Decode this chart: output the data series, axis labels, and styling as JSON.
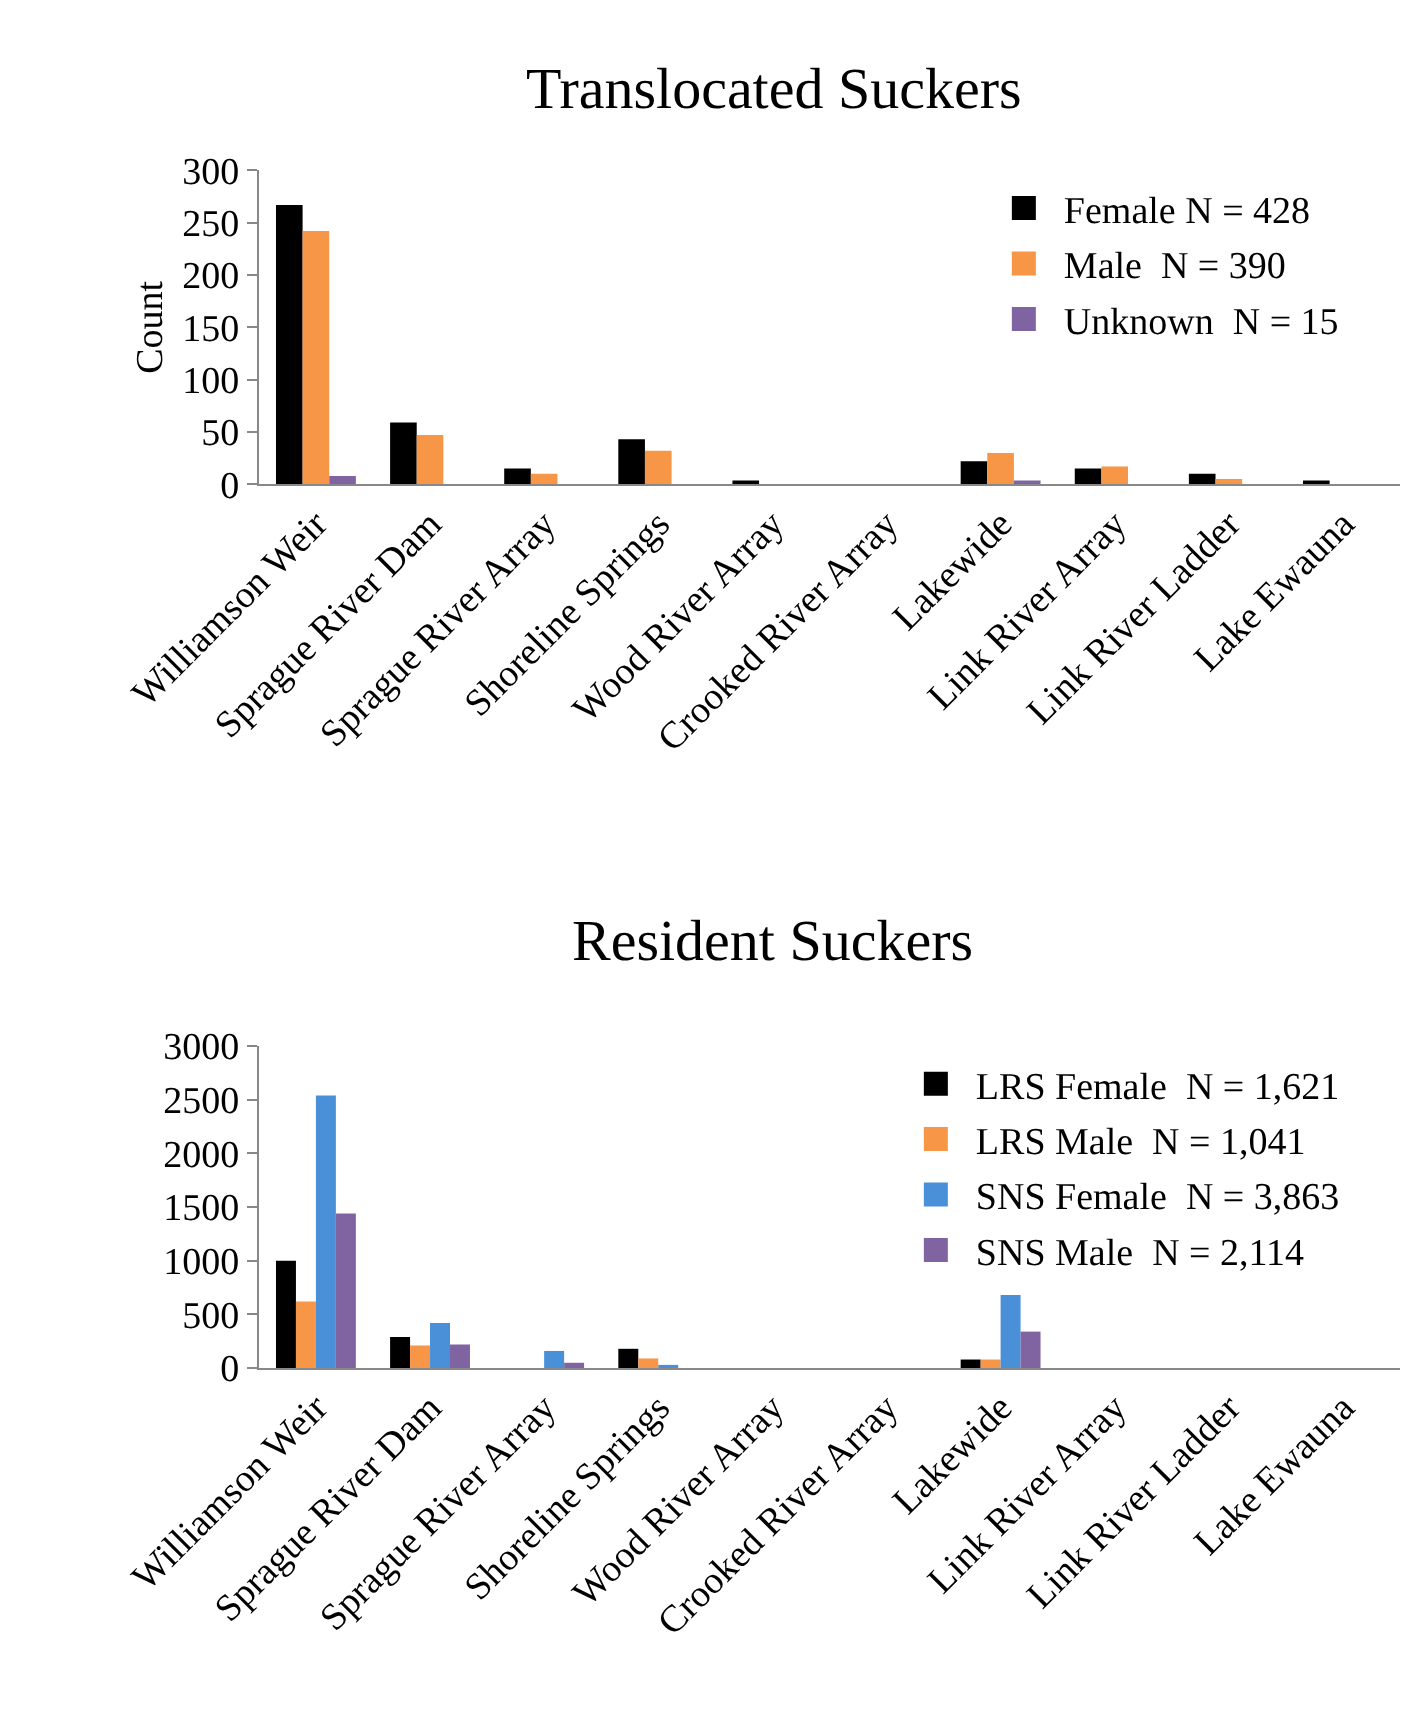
{
  "chart_data": [
    {
      "type": "bar",
      "title": "Translocated Suckers",
      "ylabel": "Count",
      "categories": [
        "Williamson Weir",
        "Sprague River Dam",
        "Sprague River Array",
        "Shoreline Springs",
        "Wood River Array",
        "Crooked River Array",
        "Lakewide",
        "Link River Array",
        "Link River Ladder",
        "Lake Ewauna"
      ],
      "series": [
        {
          "name": "Female N = 428",
          "color": "#000000",
          "values": [
            267,
            59,
            15,
            43,
            2,
            0,
            22,
            15,
            10,
            2
          ]
        },
        {
          "name": "Male  N = 390",
          "color": "#f79646",
          "values": [
            242,
            47,
            10,
            32,
            0,
            0,
            30,
            17,
            5,
            0
          ]
        },
        {
          "name": "Unknown  N = 15",
          "color": "#8064a2",
          "values": [
            8,
            0,
            0,
            0,
            0,
            0,
            3,
            0,
            0,
            0
          ]
        }
      ],
      "ylim": [
        0,
        300
      ],
      "yticks": [
        0,
        50,
        100,
        150,
        200,
        250,
        300
      ],
      "legend": "top right"
    },
    {
      "type": "bar",
      "title": "Resident Suckers",
      "categories": [
        "Williamson Weir",
        "Sprague River Dam",
        "Sprague River Array",
        "Shoreline Springs",
        "Wood River Array",
        "Crooked River Array",
        "Lakewide",
        "Link River Array",
        "Link River Ladder",
        "Lake Ewauna"
      ],
      "series": [
        {
          "name": "LRS Female  N = 1,621",
          "color": "#000000",
          "values": [
            1000,
            290,
            0,
            180,
            0,
            0,
            80,
            0,
            0,
            0
          ]
        },
        {
          "name": "LRS Male  N = 1,041",
          "color": "#f79646",
          "values": [
            620,
            210,
            0,
            90,
            0,
            0,
            80,
            0,
            0,
            0
          ]
        },
        {
          "name": "SNS Female  N = 3,863",
          "color": "#4a90d9",
          "values": [
            2540,
            420,
            160,
            30,
            0,
            0,
            680,
            0,
            0,
            0
          ]
        },
        {
          "name": "SNS Male  N = 2,114",
          "color": "#8064a2",
          "values": [
            1440,
            220,
            50,
            0,
            0,
            0,
            340,
            0,
            0,
            0
          ]
        }
      ],
      "ylim": [
        0,
        3000
      ],
      "yticks": [
        0,
        500,
        1000,
        1500,
        2000,
        2500,
        3000
      ],
      "legend": "top right"
    }
  ]
}
